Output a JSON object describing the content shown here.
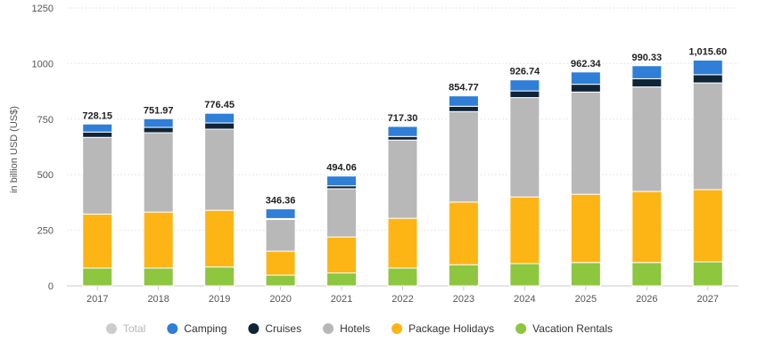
{
  "chart_data": {
    "type": "bar",
    "stacked": true,
    "ylabel": "in billion USD (US$)",
    "ylim": [
      0,
      1250
    ],
    "yticks": [
      0,
      250,
      500,
      750,
      1000,
      1250
    ],
    "ytick_labels": [
      "0",
      "250",
      "500",
      "750",
      "1000",
      "1250"
    ],
    "grid": true,
    "legend_position": "bottom",
    "categories": [
      "2017",
      "2018",
      "2019",
      "2020",
      "2021",
      "2022",
      "2023",
      "2024",
      "2025",
      "2026",
      "2027"
    ],
    "totals": [
      728.15,
      751.97,
      776.45,
      346.36,
      494.06,
      717.3,
      854.77,
      926.74,
      962.34,
      990.33,
      1015.6
    ],
    "total_labels": [
      "728.15",
      "751.97",
      "776.45",
      "346.36",
      "494.06",
      "717.30",
      "854.77",
      "926.74",
      "962.34",
      "990.33",
      "1,015.60"
    ],
    "series": [
      {
        "name": "Vacation Rentals",
        "color": "#8dc63f",
        "values": [
          80,
          80,
          85,
          48,
          58,
          80,
          95,
          100,
          105,
          105,
          108
        ]
      },
      {
        "name": "Package Holidays",
        "color": "#fdb515",
        "values": [
          243,
          252,
          255,
          108,
          162,
          224,
          282,
          300,
          307,
          320,
          325
        ]
      },
      {
        "name": "Hotels",
        "color": "#b8b8b8",
        "values": [
          345,
          357,
          365,
          143,
          217,
          352,
          407,
          447,
          460,
          470,
          480
        ]
      },
      {
        "name": "Cruises",
        "color": "#0f2537",
        "values": [
          24,
          24,
          28,
          4,
          13,
          16,
          24,
          30,
          35,
          37,
          37
        ]
      },
      {
        "name": "Camping",
        "color": "#2f7ed8",
        "values": [
          36.15,
          38.97,
          43.45,
          43.36,
          44.06,
          45.3,
          46.77,
          49.74,
          55.34,
          58.33,
          65.6
        ]
      }
    ],
    "legend": [
      {
        "label": "Total",
        "color": "#cccccc",
        "muted": true
      },
      {
        "label": "Camping",
        "color": "#2f7ed8",
        "muted": false
      },
      {
        "label": "Cruises",
        "color": "#0f2537",
        "muted": false
      },
      {
        "label": "Hotels",
        "color": "#b8b8b8",
        "muted": false
      },
      {
        "label": "Package Holidays",
        "color": "#fdb515",
        "muted": false
      },
      {
        "label": "Vacation Rentals",
        "color": "#8dc63f",
        "muted": false
      }
    ]
  }
}
